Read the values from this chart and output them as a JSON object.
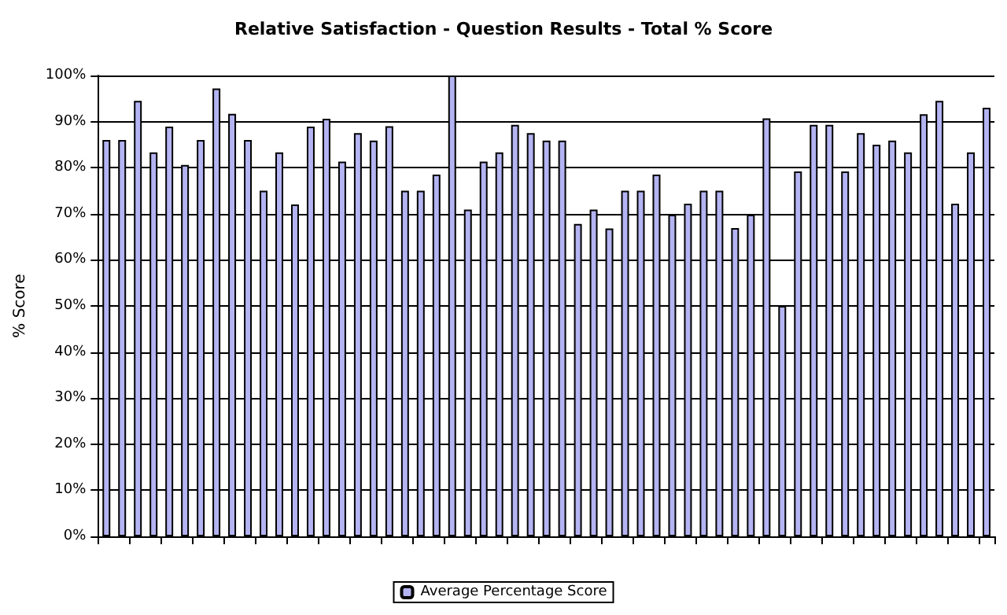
{
  "chart_data": {
    "type": "bar",
    "title": "Relative Satisfaction - Question Results - Total % Score",
    "ylabel": "% Score",
    "categories": [
      null,
      null,
      null,
      null,
      null,
      null,
      null,
      null,
      null,
      null,
      null,
      null,
      null,
      null,
      null,
      null,
      null,
      null,
      null,
      null,
      null,
      null,
      null,
      null,
      null,
      null,
      null,
      null,
      null,
      null,
      null,
      null,
      null,
      null,
      null,
      null,
      null,
      null,
      null,
      null,
      null,
      null,
      null,
      null,
      null,
      null,
      null,
      null,
      null,
      null,
      null,
      null,
      null,
      null,
      null,
      null,
      null
    ],
    "series": [
      {
        "name": "Average Percentage Score",
        "color": "#b4b4f2",
        "values": [
          86,
          86,
          94.5,
          83.3,
          88.9,
          80.6,
          86,
          97.2,
          91.7,
          86,
          75,
          83.3,
          72,
          88.9,
          90.6,
          81.3,
          87.5,
          85.9,
          89,
          75,
          75,
          78.5,
          100,
          70.9,
          81.3,
          83.3,
          89.3,
          87.5,
          85.9,
          85.9,
          67.8,
          70.9,
          66.8,
          75,
          75,
          78.5,
          69.8,
          72.2,
          75,
          75,
          66.9,
          69.8,
          90.7,
          50,
          79.2,
          89.3,
          89.3,
          79.2,
          87.5,
          85,
          85.9,
          83.3,
          91.6,
          94.5,
          72.2,
          83.3,
          93
        ]
      }
    ],
    "ylim": [
      0,
      100
    ],
    "yticks": [
      {
        "value": 0,
        "label": "0%"
      },
      {
        "value": 10,
        "label": "10%"
      },
      {
        "value": 20,
        "label": "20%"
      },
      {
        "value": 30,
        "label": "30%"
      },
      {
        "value": 40,
        "label": "40%"
      },
      {
        "value": 50,
        "label": "50%"
      },
      {
        "value": 60,
        "label": "60%"
      },
      {
        "value": 70,
        "label": "70%"
      },
      {
        "value": 80,
        "label": "80%"
      },
      {
        "value": 90,
        "label": "90%"
      },
      {
        "value": 100,
        "label": "100%"
      }
    ],
    "grid": "y",
    "legend": "bottom"
  }
}
